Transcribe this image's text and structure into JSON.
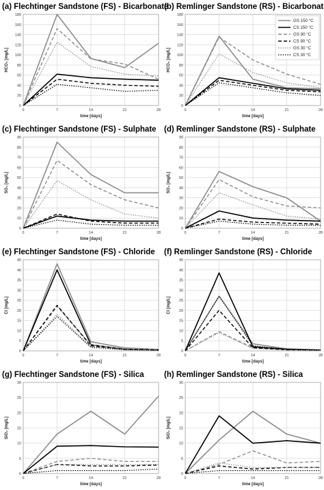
{
  "styles": [
    {
      "color": "#8c8c8c",
      "width": 1.6,
      "dash": ""
    },
    {
      "color": "#000000",
      "width": 1.6,
      "dash": ""
    },
    {
      "color": "#8c8c8c",
      "width": 1.4,
      "dash": "5,3"
    },
    {
      "color": "#000000",
      "width": 1.4,
      "dash": "5,3"
    },
    {
      "color": "#8c8c8c",
      "width": 1.2,
      "dash": "1.5,1.8"
    },
    {
      "color": "#000000",
      "width": 1.2,
      "dash": "1.5,1.8"
    }
  ],
  "chart_data": [
    {
      "type": "line",
      "title": "(a) Flechtinger Sandstone (FS) - Bicarbonate",
      "xlabel": "time [days]",
      "ylabel": "HCO₃ [mg/L]",
      "ylim": [
        0,
        180
      ],
      "ystep": 20,
      "x": [
        0,
        7,
        14,
        21,
        28
      ],
      "series": [
        {
          "name": "GS 150 °C",
          "values": [
            0,
            180,
            93,
            75,
            123
          ]
        },
        {
          "name": "CS 150 °C",
          "values": [
            0,
            62,
            55,
            52,
            50
          ]
        },
        {
          "name": "GS 90 °C",
          "values": [
            0,
            152,
            92,
            82,
            52
          ]
        },
        {
          "name": "CS 90 °C",
          "values": [
            0,
            52,
            44,
            40,
            38
          ]
        },
        {
          "name": "GS 30 °C",
          "values": [
            0,
            125,
            77,
            62,
            58
          ]
        },
        {
          "name": "CS 30 °C",
          "values": [
            0,
            42,
            35,
            28,
            30
          ]
        }
      ]
    },
    {
      "type": "line",
      "title": "(b) Remlinger Sandstone (RS) - Bicarbonate",
      "xlabel": "time [days]",
      "ylabel": "HCO₃ [mg/L]",
      "ylim": [
        0,
        180
      ],
      "ystep": 20,
      "x": [
        0,
        7,
        14,
        21,
        28
      ],
      "legend": "top-right",
      "series": [
        {
          "name": "GS 150 °C",
          "values": [
            0,
            137,
            52,
            35,
            33
          ]
        },
        {
          "name": "CS 150 °C",
          "values": [
            0,
            55,
            44,
            33,
            30
          ]
        },
        {
          "name": "GS 90 °C",
          "values": [
            0,
            135,
            90,
            62,
            42
          ]
        },
        {
          "name": "CS 90 °C",
          "values": [
            0,
            50,
            40,
            30,
            27
          ]
        },
        {
          "name": "GS 30 °C",
          "values": [
            0,
            102,
            65,
            45,
            35
          ]
        },
        {
          "name": "CS 30 °C",
          "values": [
            0,
            45,
            35,
            25,
            20
          ]
        }
      ]
    },
    {
      "type": "line",
      "title": "(c) Flechtinger Sandstone (FS) - Sulphate",
      "xlabel": "time [days]",
      "ylabel": "SO₄ [mg/L]",
      "ylim": [
        0,
        90
      ],
      "ystep": 10,
      "x": [
        0,
        7,
        14,
        21,
        28
      ],
      "series": [
        {
          "name": "GS 150 °C",
          "values": [
            0,
            85,
            53,
            35,
            35
          ]
        },
        {
          "name": "CS 150 °C",
          "values": [
            0,
            12,
            8,
            7,
            7
          ]
        },
        {
          "name": "GS 90 °C",
          "values": [
            0,
            67,
            43,
            28,
            20
          ]
        },
        {
          "name": "CS 90 °C",
          "values": [
            0,
            14,
            7,
            5,
            5
          ]
        },
        {
          "name": "GS 30 °C",
          "values": [
            0,
            47,
            28,
            14,
            10
          ]
        },
        {
          "name": "CS 30 °C",
          "values": [
            0,
            8,
            4,
            3,
            3
          ]
        }
      ]
    },
    {
      "type": "line",
      "title": "(d) Remlinger Sandstone (RS) - Sulphate",
      "xlabel": "time [days]",
      "ylabel": "SO₄ [mg/L]",
      "ylim": [
        0,
        90
      ],
      "ystep": 10,
      "x": [
        0,
        7,
        14,
        21,
        28
      ],
      "series": [
        {
          "name": "GS 150 °C",
          "values": [
            0,
            56,
            41,
            30,
            7
          ]
        },
        {
          "name": "CS 150 °C",
          "values": [
            0,
            17,
            10,
            8,
            7
          ]
        },
        {
          "name": "GS 90 °C",
          "values": [
            0,
            48,
            31,
            22,
            20
          ]
        },
        {
          "name": "CS 90 °C",
          "values": [
            0,
            9,
            6,
            5,
            4
          ]
        },
        {
          "name": "GS 30 °C",
          "values": [
            0,
            35,
            23,
            12,
            9
          ]
        },
        {
          "name": "CS 30 °C",
          "values": [
            0,
            7,
            4,
            3,
            3
          ]
        }
      ]
    },
    {
      "type": "line",
      "title": "(e) Flechtinger Sandstone (FS) - Chloride",
      "xlabel": "time [days]",
      "ylabel": "Cl [mg/L]",
      "ylim": [
        0,
        45
      ],
      "ystep": 5,
      "x": [
        0,
        7,
        14,
        21,
        28
      ],
      "series": [
        {
          "name": "GS 150 °C",
          "values": [
            0,
            43,
            4.5,
            1.5,
            0.7
          ]
        },
        {
          "name": "CS 150 °C",
          "values": [
            0,
            40,
            3,
            0.8,
            0.5
          ]
        },
        {
          "name": "GS 90 °C",
          "values": [
            0,
            22,
            3,
            1,
            0.5
          ]
        },
        {
          "name": "CS 90 °C",
          "values": [
            0,
            22.5,
            2.5,
            0.8,
            0.4
          ]
        },
        {
          "name": "GS 30 °C",
          "values": [
            0,
            18,
            2,
            0.6,
            0.3
          ]
        },
        {
          "name": "CS 30 °C",
          "values": [
            0,
            17,
            1.8,
            0.5,
            0.3
          ]
        }
      ]
    },
    {
      "type": "line",
      "title": "(f) Remlinger Sandstone (RS) - Chloride",
      "xlabel": "time [days]",
      "ylabel": "Cl [mg/L]",
      "ylim": [
        0,
        45
      ],
      "ystep": 5,
      "x": [
        0,
        7,
        14,
        21,
        28
      ],
      "series": [
        {
          "name": "GS 150 °C",
          "values": [
            0,
            27,
            3.5,
            1,
            0.5
          ]
        },
        {
          "name": "CS 150 °C",
          "values": [
            0,
            38.5,
            2,
            0.8,
            0.4
          ]
        },
        {
          "name": "GS 90 °C",
          "values": [
            0,
            9.5,
            1.5,
            0.5,
            0.3
          ]
        },
        {
          "name": "CS 90 °C",
          "values": [
            0,
            20,
            1.5,
            0.5,
            0.3
          ]
        },
        {
          "name": "GS 30 °C",
          "values": [
            0,
            9,
            1.2,
            0.4,
            0.2
          ]
        },
        {
          "name": "CS 30 °C",
          "values": [
            0,
            27,
            2.5,
            0.8,
            0.4
          ]
        }
      ]
    },
    {
      "type": "line",
      "title": "(g) Flechtinger Sandstone (FS) - Silica",
      "xlabel": "time [days]",
      "ylabel": "SiO₂ [mg/L]",
      "ylim": [
        0,
        30
      ],
      "ystep": 5,
      "x": [
        0,
        7,
        14,
        21,
        28
      ],
      "series": [
        {
          "name": "GS 150 °C",
          "values": [
            0,
            13,
            20.5,
            13,
            25.5
          ]
        },
        {
          "name": "CS 150 °C",
          "values": [
            0,
            9,
            9.2,
            8.8,
            8.7
          ]
        },
        {
          "name": "GS 90 °C",
          "values": [
            0,
            4,
            5,
            4,
            4
          ]
        },
        {
          "name": "CS 90 °C",
          "values": [
            0,
            3,
            2.5,
            2.5,
            2.8
          ]
        },
        {
          "name": "GS 30 °C",
          "values": [
            0,
            3,
            3,
            3,
            3
          ]
        },
        {
          "name": "CS 30 °C",
          "values": [
            0,
            1,
            1,
            1,
            1.5
          ]
        }
      ]
    },
    {
      "type": "line",
      "title": "(h) Remlinger Sandstone (RS) - Silica",
      "xlabel": "time [days]",
      "ylabel": "SiO₂ [mg/L]",
      "ylim": [
        0,
        30
      ],
      "ystep": 5,
      "x": [
        0,
        7,
        14,
        21,
        28
      ],
      "series": [
        {
          "name": "GS 150 °C",
          "values": [
            0,
            11,
            20.5,
            13,
            10
          ]
        },
        {
          "name": "CS 150 °C",
          "values": [
            0,
            19,
            10,
            10.8,
            10
          ]
        },
        {
          "name": "GS 90 °C",
          "values": [
            0,
            3,
            7.5,
            3.5,
            4
          ]
        },
        {
          "name": "CS 90 °C",
          "values": [
            0,
            2.5,
            1.5,
            2,
            2
          ]
        },
        {
          "name": "GS 30 °C",
          "values": [
            0,
            3.5,
            2,
            2,
            2
          ]
        },
        {
          "name": "CS 30 °C",
          "values": [
            0,
            1,
            1,
            1,
            1
          ]
        }
      ]
    }
  ]
}
